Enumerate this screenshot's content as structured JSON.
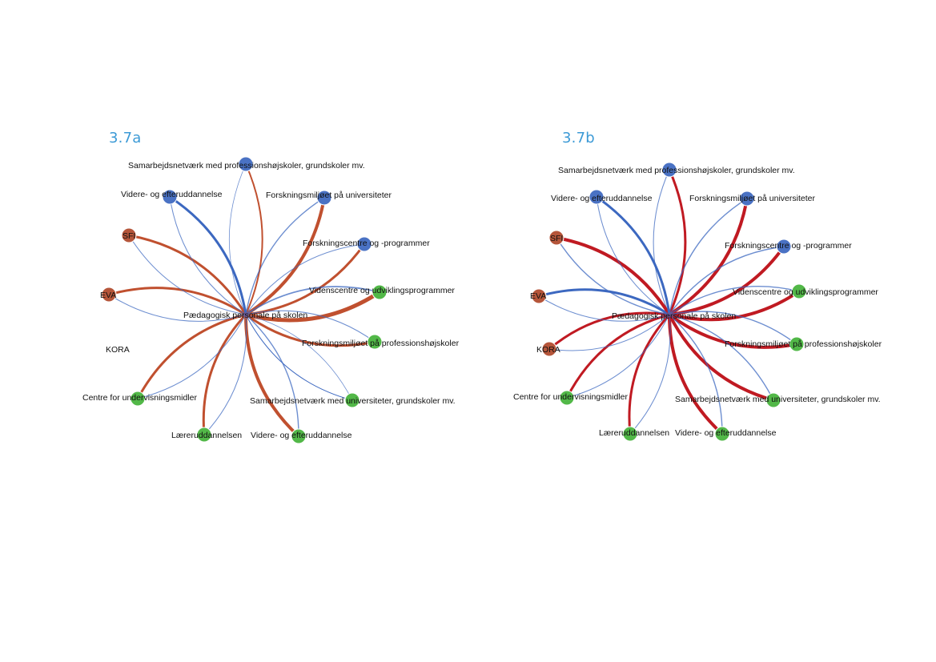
{
  "colors": {
    "title": "#3c9ad6",
    "red_edge_a": "#c0502f",
    "red_edge_b": "#c01a22",
    "blue_edge": "#3c68c0",
    "node_blue": "#4a72c4",
    "node_green": "#52b848",
    "node_red": "#b5553a"
  },
  "panels": [
    {
      "title": "3.7a",
      "center_label": "Pædagogisk personale på skolen",
      "nodes": [
        {
          "label": "Samarbejdsnetværk med professionshøjskoler, grundskoler mv.",
          "group": "blue",
          "shown": true,
          "edge": {
            "color": "red",
            "weight": 2
          }
        },
        {
          "label": "Forskningsmiljøet på universiteter",
          "group": "blue",
          "shown": true,
          "edge": {
            "color": "red",
            "weight": 4
          }
        },
        {
          "label": "Forskningscentre og -programmer",
          "group": "blue",
          "shown": true,
          "edge": {
            "color": "red",
            "weight": 3
          }
        },
        {
          "label": "Videnscentre og udviklingsprogrammer",
          "group": "green",
          "shown": true,
          "edge": {
            "color": "red",
            "weight": 5
          }
        },
        {
          "label": "Forskningsmiljøet på professionshøjskoler",
          "group": "green",
          "shown": true,
          "edge": {
            "color": "red",
            "weight": 3
          }
        },
        {
          "label": "Samarbejdsnetværk med universiteter, grundskoler mv.",
          "group": "green",
          "shown": true,
          "edge": {
            "color": "blue",
            "weight": 1
          }
        },
        {
          "label": "Videre- og efteruddannelse",
          "group": "green",
          "shown": true,
          "edge": {
            "color": "red",
            "weight": 4
          }
        },
        {
          "label": "Læreruddannelsen",
          "group": "green",
          "shown": true,
          "edge": {
            "color": "red",
            "weight": 3
          }
        },
        {
          "label": "Centre for undervisningsmidler",
          "group": "green",
          "shown": true,
          "edge": {
            "color": "red",
            "weight": 3
          }
        },
        {
          "label": "KORA",
          "group": "red",
          "shown": false,
          "edge": null
        },
        {
          "label": "EVA",
          "group": "red",
          "shown": true,
          "edge": {
            "color": "red",
            "weight": 3
          }
        },
        {
          "label": "SFI",
          "group": "red",
          "shown": true,
          "edge": {
            "color": "red",
            "weight": 3
          }
        },
        {
          "label": "Videre- og efteruddannelse",
          "group": "blue",
          "shown": true,
          "edge": {
            "color": "blue",
            "weight": 3
          }
        }
      ]
    },
    {
      "title": "3.7b",
      "center_label": "Pædagogisk personale på skolen",
      "nodes": [
        {
          "label": "Samarbejdsnetværk med professionshøjskoler, grundskoler mv.",
          "group": "blue",
          "shown": true,
          "edge": {
            "color": "red",
            "weight": 3
          }
        },
        {
          "label": "Forskningsmiljøet på universiteter",
          "group": "blue",
          "shown": true,
          "edge": {
            "color": "red",
            "weight": 4
          }
        },
        {
          "label": "Forskningscentre og -programmer",
          "group": "blue",
          "shown": true,
          "edge": {
            "color": "red",
            "weight": 4
          }
        },
        {
          "label": "Videnscentre og udviklingsprogrammer",
          "group": "green",
          "shown": true,
          "edge": {
            "color": "red",
            "weight": 4
          }
        },
        {
          "label": "Forskningsmiljøet på professionshøjskoler",
          "group": "green",
          "shown": true,
          "edge": {
            "color": "red",
            "weight": 4
          }
        },
        {
          "label": "Samarbejdsnetværk med universiteter, grundskoler mv.",
          "group": "green",
          "shown": true,
          "edge": {
            "color": "red",
            "weight": 4
          }
        },
        {
          "label": "Videre- og efteruddannelse",
          "group": "green",
          "shown": true,
          "edge": {
            "color": "red",
            "weight": 4
          }
        },
        {
          "label": "Læreruddannelsen",
          "group": "green",
          "shown": true,
          "edge": {
            "color": "red",
            "weight": 3
          }
        },
        {
          "label": "Centre for undervisningsmidler",
          "group": "green",
          "shown": true,
          "edge": {
            "color": "red",
            "weight": 3
          }
        },
        {
          "label": "KORA",
          "group": "red",
          "shown": true,
          "edge": {
            "color": "red",
            "weight": 3
          }
        },
        {
          "label": "EVA",
          "group": "red",
          "shown": true,
          "edge": {
            "color": "blue",
            "weight": 3
          }
        },
        {
          "label": "SFI",
          "group": "red",
          "shown": true,
          "edge": {
            "color": "red",
            "weight": 4
          }
        },
        {
          "label": "Videre- og efteruddannelse",
          "group": "blue",
          "shown": true,
          "edge": {
            "color": "blue",
            "weight": 3
          }
        }
      ]
    }
  ]
}
